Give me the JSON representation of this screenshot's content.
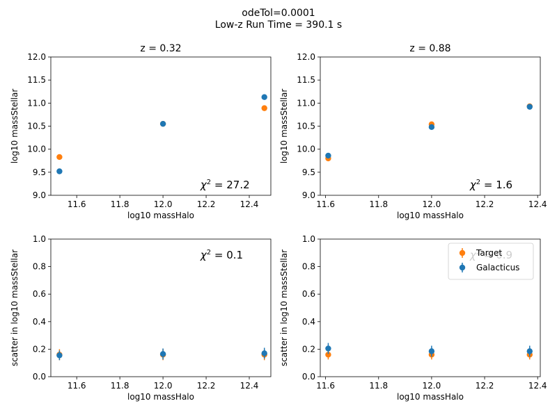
{
  "figure": {
    "suptitle_line1": "odeTol=0.0001",
    "suptitle_line2": "Low-z Run Time = 390.1 s"
  },
  "colors": {
    "target": "#ff7f0e",
    "galacticus": "#1f77b4",
    "chi": "#1f77b4"
  },
  "chart_data": [
    {
      "type": "scatter",
      "panel": "top-left",
      "title": "z = 0.32",
      "xlabel": "log10 massHalo",
      "ylabel": "log10 massStellar",
      "xlim": [
        11.48,
        12.5
      ],
      "ylim": [
        9.0,
        12.0
      ],
      "xticks": [
        11.6,
        11.8,
        12.0,
        12.2,
        12.4
      ],
      "yticks": [
        9.0,
        9.5,
        10.0,
        10.5,
        11.0,
        11.5,
        12.0
      ],
      "xtick_labels": [
        "11.6",
        "11.8",
        "12.0",
        "12.2",
        "12.4"
      ],
      "ytick_labels": [
        "9.0",
        "9.5",
        "10.0",
        "10.5",
        "11.0",
        "11.5",
        "12.0"
      ],
      "annotation": "χ² = 27.2",
      "series": [
        {
          "name": "Target",
          "color": "#ff7f0e",
          "x": [
            11.52,
            12.0,
            12.47
          ],
          "y": [
            9.83,
            10.55,
            10.89
          ],
          "err": [
            0.01,
            0.01,
            0.01
          ]
        },
        {
          "name": "Galacticus",
          "color": "#1f77b4",
          "x": [
            11.52,
            12.0,
            12.47
          ],
          "y": [
            9.52,
            10.55,
            11.13
          ],
          "err": [
            0.01,
            0.01,
            0.01
          ]
        }
      ]
    },
    {
      "type": "scatter",
      "panel": "top-right",
      "title": "z = 0.88",
      "xlabel": "log10 massHalo",
      "ylabel": "log10 massStellar",
      "xlim": [
        11.58,
        12.41
      ],
      "ylim": [
        9.0,
        12.0
      ],
      "xticks": [
        11.6,
        11.8,
        12.0,
        12.2,
        12.4
      ],
      "yticks": [
        9.0,
        9.5,
        10.0,
        10.5,
        11.0,
        11.5,
        12.0
      ],
      "xtick_labels": [
        "11.6",
        "11.8",
        "12.0",
        "12.2",
        "12.4"
      ],
      "ytick_labels": [
        "9.0",
        "9.5",
        "10.0",
        "10.5",
        "11.0",
        "11.5",
        "12.0"
      ],
      "annotation": "χ² = 1.6",
      "series": [
        {
          "name": "Target",
          "color": "#ff7f0e",
          "x": [
            11.61,
            12.0,
            12.37
          ],
          "y": [
            9.8,
            10.54,
            10.93
          ],
          "err": [
            0.01,
            0.01,
            0.01
          ]
        },
        {
          "name": "Galacticus",
          "color": "#1f77b4",
          "x": [
            11.61,
            12.0,
            12.37
          ],
          "y": [
            9.86,
            10.48,
            10.92
          ],
          "err": [
            0.01,
            0.01,
            0.01
          ]
        }
      ]
    },
    {
      "type": "scatter",
      "panel": "bottom-left",
      "xlabel": "log10 massHalo",
      "ylabel": "scatter in log10 massStellar",
      "xlim": [
        11.48,
        12.5
      ],
      "ylim": [
        0.0,
        1.0
      ],
      "xticks": [
        11.6,
        11.8,
        12.0,
        12.2,
        12.4
      ],
      "yticks": [
        0.0,
        0.2,
        0.4,
        0.6,
        0.8,
        1.0
      ],
      "xtick_labels": [
        "11.6",
        "11.8",
        "12.0",
        "12.2",
        "12.4"
      ],
      "ytick_labels": [
        "0.0",
        "0.2",
        "0.4",
        "0.6",
        "0.8",
        "1.0"
      ],
      "annotation": "χ² = 0.1",
      "series": [
        {
          "name": "Target",
          "color": "#ff7f0e",
          "x": [
            11.52,
            12.0,
            12.47
          ],
          "y": [
            0.16,
            0.16,
            0.16
          ],
          "err": [
            0.04,
            0.04,
            0.04
          ]
        },
        {
          "name": "Galacticus",
          "color": "#1f77b4",
          "x": [
            11.52,
            12.0,
            12.47
          ],
          "y": [
            0.155,
            0.165,
            0.17
          ],
          "err": [
            0.035,
            0.04,
            0.04
          ]
        }
      ]
    },
    {
      "type": "scatter",
      "panel": "bottom-right",
      "xlabel": "log10 massHalo",
      "ylabel": "scatter in log10 massStellar",
      "xlim": [
        11.58,
        12.41
      ],
      "ylim": [
        0.0,
        1.0
      ],
      "xticks": [
        11.6,
        11.8,
        12.0,
        12.2,
        12.4
      ],
      "yticks": [
        0.0,
        0.2,
        0.4,
        0.6,
        0.8,
        1.0
      ],
      "xtick_labels": [
        "11.6",
        "11.8",
        "12.0",
        "12.2",
        "12.4"
      ],
      "ytick_labels": [
        "0.0",
        "0.2",
        "0.4",
        "0.6",
        "0.8",
        "1.0"
      ],
      "annotation": "χ² = 0.9",
      "legend": {
        "placement": "top-right",
        "entries": [
          "Target",
          "Galacticus"
        ]
      },
      "series": [
        {
          "name": "Target",
          "color": "#ff7f0e",
          "x": [
            11.61,
            12.0,
            12.37
          ],
          "y": [
            0.16,
            0.16,
            0.16
          ],
          "err": [
            0.035,
            0.035,
            0.035
          ]
        },
        {
          "name": "Galacticus",
          "color": "#1f77b4",
          "x": [
            11.61,
            12.0,
            12.37
          ],
          "y": [
            0.205,
            0.185,
            0.185
          ],
          "err": [
            0.04,
            0.04,
            0.04
          ]
        }
      ]
    }
  ]
}
